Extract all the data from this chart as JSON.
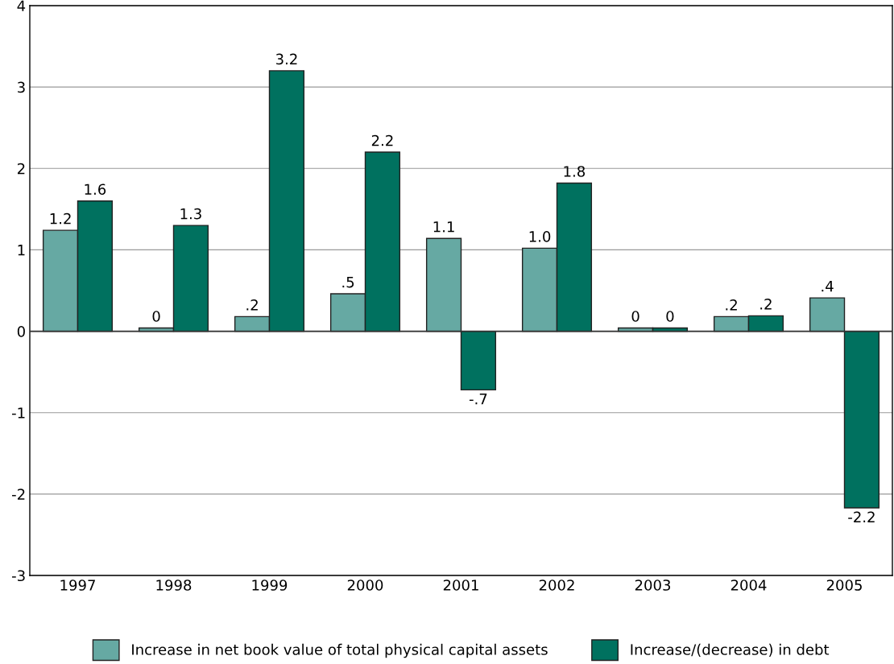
{
  "chart_data": {
    "type": "bar",
    "categories": [
      "1997",
      "1998",
      "1999",
      "2000",
      "2001",
      "2002",
      "2003",
      "2004",
      "2005"
    ],
    "series": [
      {
        "name": "Increase in net book value of total physical capital assets",
        "color": "#66a9a3",
        "values": [
          1.24,
          0.04,
          0.18,
          0.46,
          1.14,
          1.02,
          0.04,
          0.18,
          0.41
        ],
        "value_labels": [
          "1.2",
          "0",
          ".2",
          ".5",
          "1.1",
          "1.0",
          "0",
          ".2",
          ".4"
        ]
      },
      {
        "name": "Increase/(decrease) in debt",
        "color": "#00715f",
        "values": [
          1.6,
          1.3,
          3.2,
          2.2,
          -0.72,
          1.82,
          0.04,
          0.19,
          -2.17
        ],
        "value_labels": [
          "1.6",
          "1.3",
          "3.2",
          "2.2",
          "-.7",
          "1.8",
          "0",
          ".2",
          "-2.2"
        ]
      }
    ],
    "ylim": [
      -3,
      4
    ],
    "yticks": [
      -3,
      -2,
      -1,
      0,
      1,
      2,
      3,
      4
    ],
    "grid": "y",
    "legend": "bottom"
  }
}
